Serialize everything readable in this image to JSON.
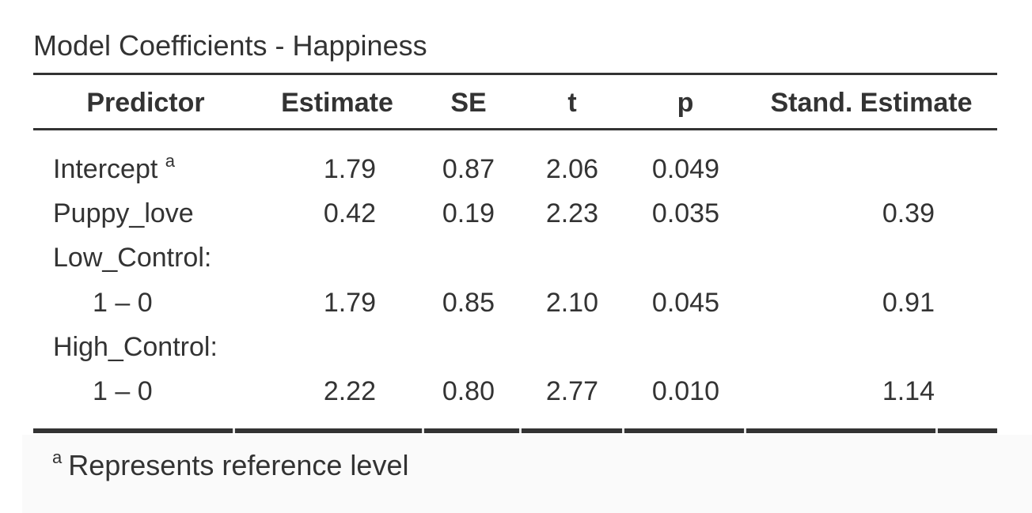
{
  "table": {
    "title": "Model Coefficients - Happiness",
    "columns": {
      "predictor": "Predictor",
      "estimate": "Estimate",
      "se": "SE",
      "t": "t",
      "p": "p",
      "stand_estimate": "Stand. Estimate"
    },
    "rows": [
      {
        "predictor": "Intercept",
        "marker": "a",
        "estimate": "1.79",
        "se": "0.87",
        "t": "2.06",
        "p": "0.049",
        "stand_estimate": ""
      },
      {
        "predictor": "Puppy_love",
        "estimate": "0.42",
        "se": "0.19",
        "t": "2.23",
        "p": "0.035",
        "stand_estimate": "0.39"
      },
      {
        "predictor": "Low_Control:"
      },
      {
        "predictor": "1 – 0",
        "estimate": "1.79",
        "se": "0.85",
        "t": "2.10",
        "p": "0.045",
        "stand_estimate": "0.91"
      },
      {
        "predictor": "High_Control:"
      },
      {
        "predictor": "1 – 0",
        "estimate": "2.22",
        "se": "0.80",
        "t": "2.77",
        "p": "0.010",
        "stand_estimate": "1.14"
      }
    ],
    "footnote": {
      "marker": "a",
      "text": "Represents reference level"
    }
  }
}
